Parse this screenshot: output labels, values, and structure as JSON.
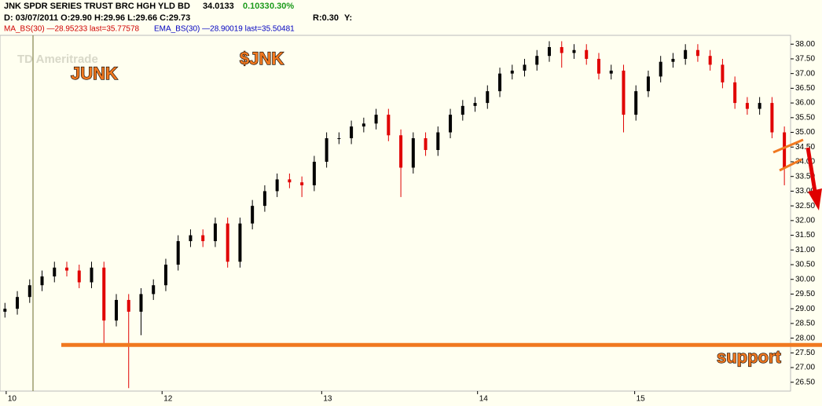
{
  "chart_data": {
    "type": "candlestick",
    "title": "JNK SPDR SERIES TRUST BRC HGH YLD BD",
    "last_price": "34.0133",
    "change": "0.1033",
    "change_pct": "0.30%",
    "info": "D: 03/07/2011  O:29.90  H:29.96  L:29.66  C:29.73",
    "ratio": "R:0.30",
    "y_readout": "Y:",
    "ma_label": "MA_BS(30) —28.95233 last=35.77578",
    "ema_label": "EMA_BS(30) —28.90019 last=35.50481",
    "logo": "TD Ameritrade",
    "annotations": {
      "junk": "JUNK",
      "ticker": "$JNK",
      "support": "support"
    },
    "support_level": 27.77,
    "up_color": "#000000",
    "down_color": "#e00000",
    "open": [
      28.9,
      29.0,
      29.4,
      29.8,
      30.1,
      30.4,
      30.3,
      29.9,
      30.4,
      28.6,
      29.3,
      28.9,
      29.5,
      29.8,
      30.5,
      31.3,
      31.5,
      31.3,
      31.9,
      30.6,
      31.9,
      32.5,
      33.0,
      33.4,
      33.3,
      33.2,
      34.0,
      34.8,
      34.8,
      35.2,
      35.3,
      35.6,
      34.9,
      33.8,
      34.8,
      34.4,
      35.0,
      35.6,
      35.9,
      36.0,
      36.4,
      37.0,
      37.1,
      37.3,
      37.6,
      37.9,
      37.7,
      37.8,
      37.5,
      37.0,
      37.1,
      35.6,
      36.4,
      36.9,
      37.4,
      37.5,
      37.8,
      37.6,
      37.3,
      36.7,
      36.0,
      35.8,
      36.0,
      35.0
    ],
    "high": [
      29.2,
      29.6,
      30.0,
      30.3,
      30.6,
      30.6,
      30.5,
      30.6,
      30.6,
      29.5,
      29.5,
      29.7,
      30.0,
      30.7,
      31.5,
      31.7,
      31.7,
      32.1,
      32.1,
      32.1,
      32.7,
      33.2,
      33.6,
      33.6,
      33.5,
      34.2,
      35.0,
      35.0,
      35.4,
      35.5,
      35.8,
      35.8,
      35.1,
      35.0,
      35.0,
      35.2,
      35.8,
      36.1,
      36.2,
      36.6,
      37.2,
      37.3,
      37.5,
      37.8,
      38.1,
      38.1,
      38.0,
      38.0,
      37.7,
      37.3,
      37.3,
      36.6,
      37.1,
      37.6,
      37.7,
      38.0,
      38.0,
      37.8,
      37.5,
      36.9,
      36.2,
      36.2,
      36.2,
      35.2
    ],
    "low": [
      28.7,
      28.8,
      29.2,
      29.6,
      29.9,
      30.1,
      29.7,
      29.7,
      27.8,
      28.4,
      26.3,
      28.1,
      29.3,
      29.6,
      30.3,
      31.1,
      31.1,
      31.1,
      30.4,
      30.4,
      31.7,
      32.3,
      32.8,
      33.1,
      32.8,
      33.0,
      33.8,
      34.6,
      34.6,
      35.0,
      35.1,
      34.7,
      32.8,
      33.6,
      34.2,
      34.2,
      34.8,
      35.4,
      35.7,
      35.8,
      36.2,
      36.8,
      36.9,
      37.1,
      37.4,
      37.2,
      37.5,
      37.3,
      36.8,
      36.8,
      35.0,
      35.4,
      36.2,
      36.7,
      37.2,
      37.3,
      37.4,
      37.1,
      36.5,
      35.8,
      35.6,
      35.6,
      34.8,
      33.2
    ],
    "close": [
      29.0,
      29.4,
      29.8,
      30.1,
      30.4,
      30.3,
      29.9,
      30.4,
      28.6,
      29.3,
      28.9,
      29.5,
      29.8,
      30.5,
      31.3,
      31.5,
      31.3,
      31.9,
      30.6,
      31.9,
      32.5,
      33.0,
      33.4,
      33.3,
      33.2,
      34.0,
      34.8,
      34.8,
      35.2,
      35.3,
      35.6,
      34.9,
      33.8,
      34.8,
      34.4,
      35.0,
      35.6,
      35.9,
      36.0,
      36.4,
      37.0,
      37.1,
      37.3,
      37.6,
      37.9,
      37.7,
      37.8,
      37.5,
      37.0,
      37.1,
      35.6,
      36.4,
      36.9,
      37.4,
      37.5,
      37.8,
      37.6,
      37.3,
      36.7,
      36.0,
      35.8,
      36.0,
      35.0,
      33.8
    ],
    "xlim": [
      -0.4,
      63.5
    ],
    "xticks": [
      {
        "value": 0.1,
        "label": "10"
      },
      {
        "value": 12.7,
        "label": "12"
      },
      {
        "value": 25.6,
        "label": "13"
      },
      {
        "value": 38.2,
        "label": "14"
      },
      {
        "value": 50.9,
        "label": "15"
      }
    ],
    "ylim": [
      26.2,
      38.3
    ],
    "yticks": [
      {
        "value": 26.5,
        "label": "26.50"
      },
      {
        "value": 27,
        "label": "27.00"
      },
      {
        "value": 27.5,
        "label": "27.50"
      },
      {
        "value": 28,
        "label": "28.00"
      },
      {
        "value": 28.5,
        "label": "28.50"
      },
      {
        "value": 29,
        "label": "29.00"
      },
      {
        "value": 29.5,
        "label": "29.50"
      },
      {
        "value": 30,
        "label": "30.00"
      },
      {
        "value": 30.5,
        "label": "30.50"
      },
      {
        "value": 31,
        "label": "31.00"
      },
      {
        "value": 31.5,
        "label": "31.50"
      },
      {
        "value": 32,
        "label": "32.00"
      },
      {
        "value": 32.5,
        "label": "32.50"
      },
      {
        "value": 33,
        "label": "33.00"
      },
      {
        "value": 33.5,
        "label": "33.50"
      },
      {
        "value": 34,
        "label": "34.00"
      },
      {
        "value": 34.5,
        "label": "34.50"
      },
      {
        "value": 35,
        "label": "35.00"
      },
      {
        "value": 35.5,
        "label": "35.50"
      },
      {
        "value": 36,
        "label": "36.00"
      },
      {
        "value": 36.5,
        "label": "36.50"
      },
      {
        "value": 37,
        "label": "37.00"
      },
      {
        "value": 37.5,
        "label": "37.50"
      },
      {
        "value": 38,
        "label": "38.00"
      }
    ]
  }
}
